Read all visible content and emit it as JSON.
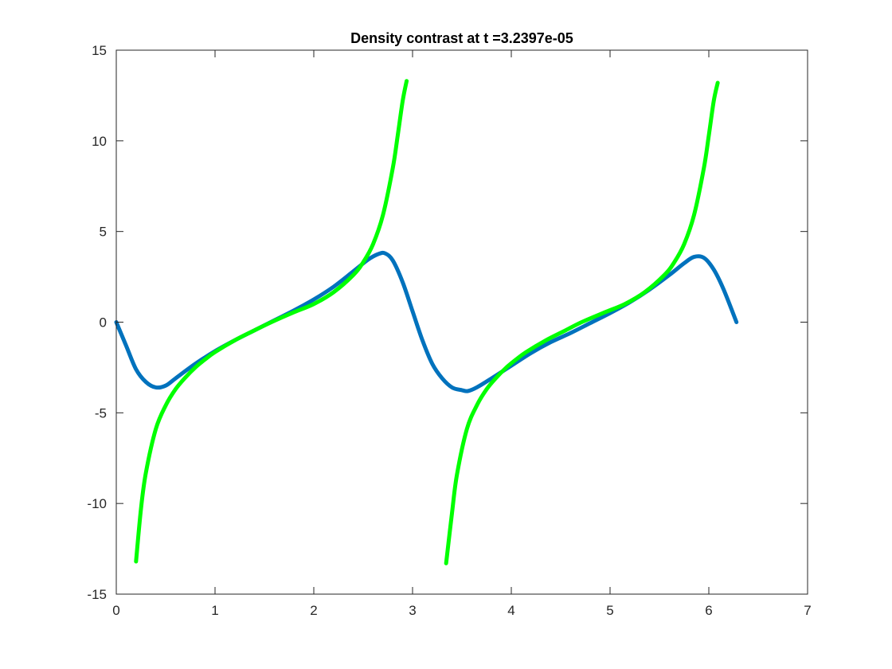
{
  "chart_data": {
    "type": "line",
    "title": "Density contrast at t =3.2397e-05",
    "xlabel": "",
    "ylabel": "",
    "xlim": [
      0,
      7
    ],
    "ylim": [
      -15,
      15
    ],
    "xticks": [
      0,
      1,
      2,
      3,
      4,
      5,
      6,
      7
    ],
    "yticks": [
      -15,
      -10,
      -5,
      0,
      5,
      10,
      15
    ],
    "grid": false,
    "box": true,
    "series": [
      {
        "color": "#0072BD",
        "x": [
          0,
          0.1,
          0.2,
          0.3,
          0.4,
          0.5,
          0.6,
          0.8,
          1.0,
          1.2,
          1.4,
          1.6,
          1.8,
          2.0,
          2.2,
          2.4,
          2.55,
          2.65,
          2.72,
          2.8,
          2.9,
          3.0,
          3.1,
          3.2,
          3.3,
          3.4,
          3.5,
          3.56,
          3.65,
          3.8,
          4.0,
          4.2,
          4.4,
          4.6,
          4.8,
          5.0,
          5.2,
          5.4,
          5.6,
          5.75,
          5.85,
          5.95,
          6.05,
          6.15,
          6.28
        ],
        "y": [
          0,
          -1.3,
          -2.6,
          -3.3,
          -3.6,
          -3.5,
          -3.1,
          -2.3,
          -1.6,
          -1.0,
          -0.45,
          0.1,
          0.65,
          1.25,
          1.95,
          2.8,
          3.45,
          3.75,
          3.8,
          3.4,
          2.2,
          0.6,
          -1.0,
          -2.3,
          -3.1,
          -3.6,
          -3.75,
          -3.8,
          -3.6,
          -3.1,
          -2.4,
          -1.7,
          -1.1,
          -0.6,
          -0.05,
          0.5,
          1.1,
          1.8,
          2.6,
          3.25,
          3.6,
          3.55,
          2.9,
          1.8,
          0
        ]
      },
      {
        "color": "#00FF00",
        "branches": [
          {
            "x": [
              0.2,
              0.25,
              0.3,
              0.4,
              0.5,
              0.6,
              0.7,
              0.8,
              0.9,
              1.0,
              1.2,
              1.4,
              1.571,
              1.8,
              2.0,
              2.2,
              2.4,
              2.5,
              2.6,
              2.7,
              2.8,
              2.85,
              2.9,
              2.94
            ],
            "y": [
              -13.2,
              -10.3,
              -8.3,
              -5.9,
              -4.6,
              -3.7,
              -3.05,
              -2.5,
              -2.05,
              -1.65,
              -1.0,
              -0.45,
              0,
              0.55,
              1.0,
              1.65,
              2.6,
              3.3,
              4.3,
              5.9,
              8.5,
              10.3,
              12.2,
              13.3
            ]
          },
          {
            "x": [
              3.34,
              3.4,
              3.45,
              3.55,
              3.65,
              3.75,
              3.85,
              3.95,
              4.05,
              4.15,
              4.35,
              4.55,
              4.712,
              4.95,
              5.15,
              5.35,
              5.55,
              5.65,
              5.75,
              5.85,
              5.95,
              6.0,
              6.05,
              6.09
            ],
            "y": [
              -13.3,
              -10.5,
              -8.4,
              -5.9,
              -4.6,
              -3.7,
              -3.05,
              -2.5,
              -2.05,
              -1.65,
              -1.0,
              -0.45,
              0,
              0.55,
              1.0,
              1.65,
              2.6,
              3.3,
              4.3,
              5.9,
              8.5,
              10.3,
              12.2,
              13.2
            ]
          }
        ]
      }
    ]
  }
}
